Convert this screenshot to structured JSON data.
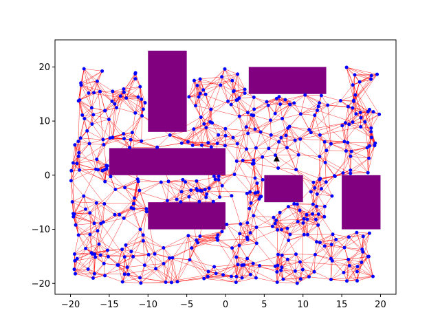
{
  "chart_data": {
    "type": "scatter",
    "title": "",
    "xlabel": "",
    "ylabel": "",
    "xlim": [
      -22,
      22
    ],
    "ylim": [
      -22,
      25
    ],
    "xticks": [
      -20,
      -15,
      -10,
      -5,
      0,
      5,
      10,
      15,
      20
    ],
    "yticks": [
      -20,
      -10,
      0,
      10,
      20
    ],
    "xtick_labels": [
      "−20",
      "−15",
      "−10",
      "−5",
      "0",
      "5",
      "10",
      "15",
      "20"
    ],
    "ytick_labels": [
      "−20",
      "−10",
      "0",
      "10",
      "20"
    ],
    "grid": false,
    "legend": "none",
    "obstacles": [
      {
        "x0": -10,
        "x1": -5,
        "y0": 8,
        "y1": 23
      },
      {
        "x0": 3,
        "x1": 13,
        "y0": 15,
        "y1": 20
      },
      {
        "x0": -15,
        "x1": 0,
        "y0": 0,
        "y1": 5
      },
      {
        "x0": 5,
        "x1": 10,
        "y0": -5,
        "y1": 0
      },
      {
        "x0": 15,
        "x1": 20,
        "y0": -10,
        "y1": 0
      },
      {
        "x0": -10,
        "x1": 0,
        "y0": -10,
        "y1": -5
      }
    ],
    "marker": {
      "x": 6.6,
      "y": 3.0,
      "shape": "triangle"
    },
    "node_count": 460,
    "colors": {
      "edges": "#ff0000",
      "nodes": "#0000ff",
      "obstacles": "#800080",
      "marker": "#000000"
    }
  }
}
